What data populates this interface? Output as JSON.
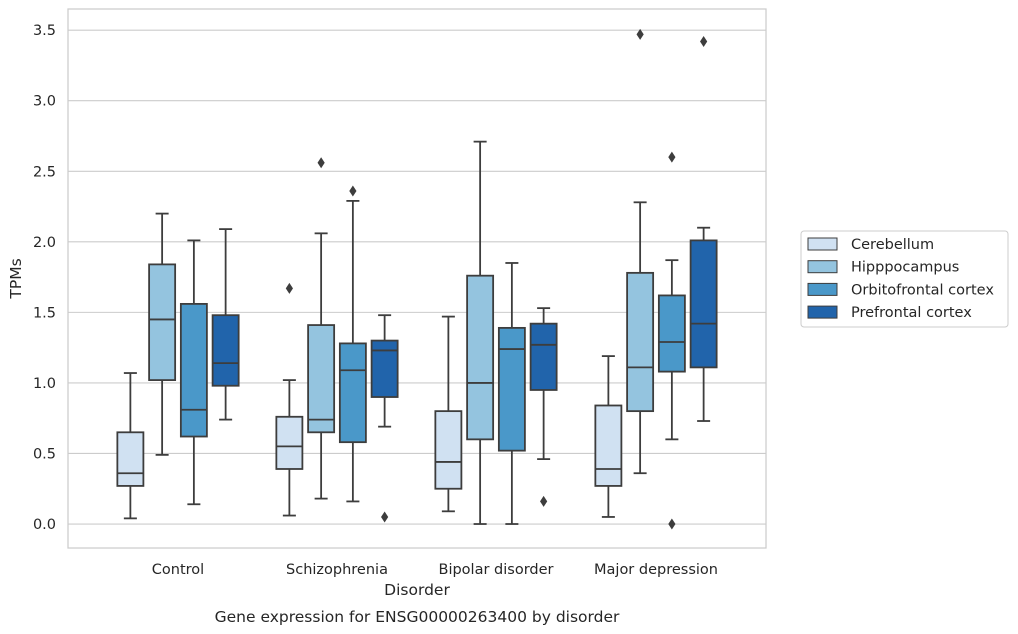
{
  "chart_data": {
    "type": "box",
    "title": "Gene expression for ENSG00000263400 by disorder",
    "xlabel": "Disorder",
    "ylabel": "TPMs",
    "ylim": [
      -0.17,
      3.65
    ],
    "yticks": [
      "0.0",
      "0.5",
      "1.0",
      "1.5",
      "2.0",
      "2.5",
      "3.0",
      "3.5"
    ],
    "ytick_values": [
      0,
      0.5,
      1.0,
      1.5,
      2.0,
      2.5,
      3.0,
      3.5
    ],
    "grid": true,
    "legend_position": "right",
    "categories": [
      "Control",
      "Schizophrenia",
      "Bipolar disorder",
      "Major depression"
    ],
    "series": [
      {
        "name": "Cerebellum",
        "color": "#d0e1f2",
        "boxes": [
          {
            "whislo": 0.04,
            "q1": 0.27,
            "med": 0.36,
            "q3": 0.65,
            "whishi": 1.07,
            "fliers": []
          },
          {
            "whislo": 0.06,
            "q1": 0.39,
            "med": 0.55,
            "q3": 0.76,
            "whishi": 1.02,
            "fliers": [
              1.67
            ]
          },
          {
            "whislo": 0.09,
            "q1": 0.25,
            "med": 0.44,
            "q3": 0.8,
            "whishi": 1.47,
            "fliers": []
          },
          {
            "whislo": 0.05,
            "q1": 0.27,
            "med": 0.39,
            "q3": 0.84,
            "whishi": 1.19,
            "fliers": []
          }
        ]
      },
      {
        "name": "Hipppocampus",
        "color": "#94c4df",
        "boxes": [
          {
            "whislo": 0.49,
            "q1": 1.02,
            "med": 1.45,
            "q3": 1.84,
            "whishi": 2.2,
            "fliers": []
          },
          {
            "whislo": 0.18,
            "q1": 0.65,
            "med": 0.74,
            "q3": 1.41,
            "whishi": 2.06,
            "fliers": [
              2.56
            ]
          },
          {
            "whislo": 0.0,
            "q1": 0.6,
            "med": 1.0,
            "q3": 1.76,
            "whishi": 2.71,
            "fliers": []
          },
          {
            "whislo": 0.36,
            "q1": 0.8,
            "med": 1.11,
            "q3": 1.78,
            "whishi": 2.28,
            "fliers": [
              3.47
            ]
          }
        ]
      },
      {
        "name": "Orbitofrontal cortex",
        "color": "#4a98c9",
        "boxes": [
          {
            "whislo": 0.14,
            "q1": 0.62,
            "med": 0.81,
            "q3": 1.56,
            "whishi": 2.01,
            "fliers": []
          },
          {
            "whislo": 0.16,
            "q1": 0.58,
            "med": 1.09,
            "q3": 1.28,
            "whishi": 2.29,
            "fliers": [
              2.36
            ]
          },
          {
            "whislo": 0.0,
            "q1": 0.52,
            "med": 1.24,
            "q3": 1.39,
            "whishi": 1.85,
            "fliers": []
          },
          {
            "whislo": 0.6,
            "q1": 1.08,
            "med": 1.29,
            "q3": 1.62,
            "whishi": 1.87,
            "fliers": [
              2.6,
              0.0
            ]
          }
        ]
      },
      {
        "name": "Prefrontal cortex",
        "color": "#2164ab",
        "boxes": [
          {
            "whislo": 0.74,
            "q1": 0.98,
            "med": 1.14,
            "q3": 1.48,
            "whishi": 2.09,
            "fliers": []
          },
          {
            "whislo": 0.69,
            "q1": 0.9,
            "med": 1.23,
            "q3": 1.3,
            "whishi": 1.48,
            "fliers": [
              0.05
            ]
          },
          {
            "whislo": 0.46,
            "q1": 0.95,
            "med": 1.27,
            "q3": 1.42,
            "whishi": 1.53,
            "fliers": [
              0.16
            ]
          },
          {
            "whislo": 0.73,
            "q1": 1.11,
            "med": 1.42,
            "q3": 2.01,
            "whishi": 2.1,
            "fliers": [
              3.42
            ]
          }
        ]
      }
    ]
  }
}
